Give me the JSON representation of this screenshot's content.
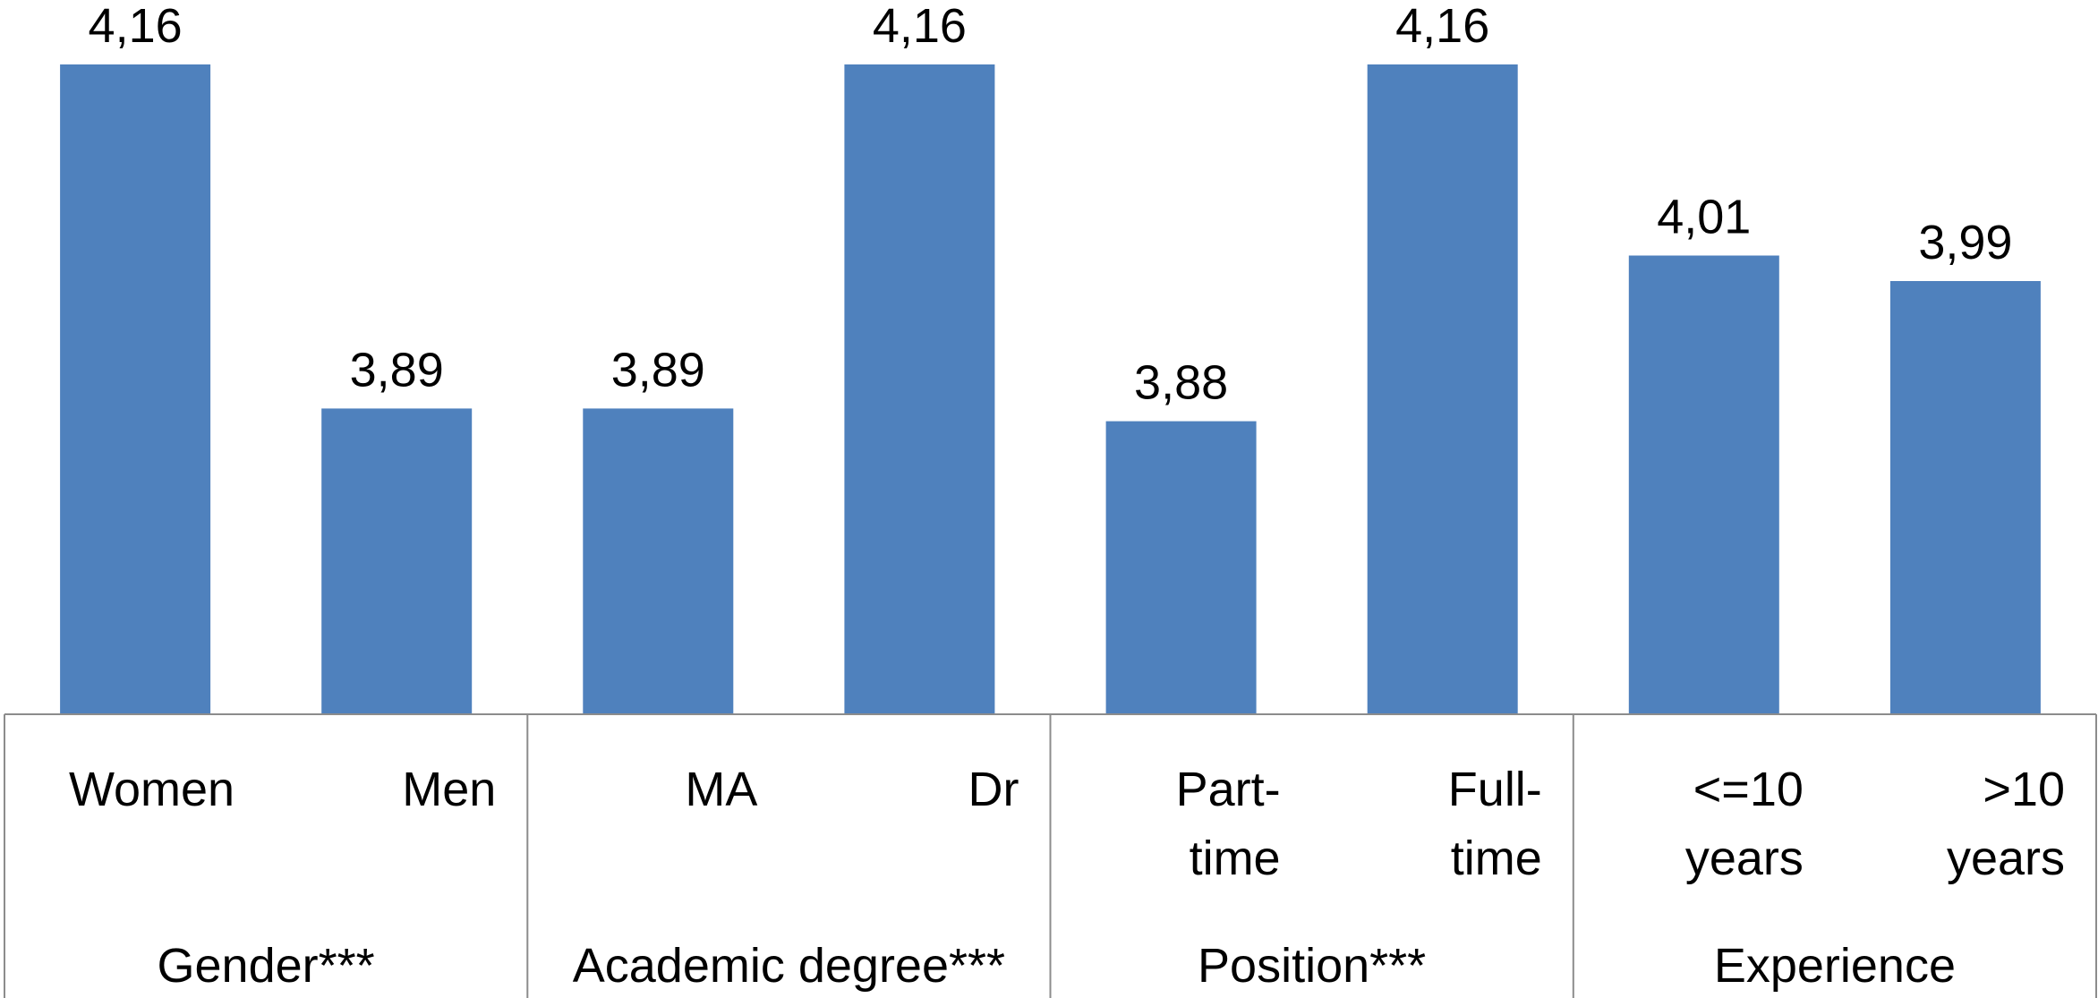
{
  "chart_data": {
    "type": "bar",
    "bar_color": "#4f81bd",
    "categories": [
      "Women",
      "Men",
      "MA",
      "Dr",
      "Part-time",
      "Full-time",
      "<=10 years",
      ">10 years"
    ],
    "category_lines": [
      [
        "Women"
      ],
      [
        "Men"
      ],
      [
        "MA"
      ],
      [
        "Dr"
      ],
      [
        "Part-",
        "time"
      ],
      [
        "Full-",
        "time"
      ],
      [
        "<=10",
        "years"
      ],
      [
        ">10",
        "years"
      ]
    ],
    "values": [
      4.16,
      3.89,
      3.89,
      4.16,
      3.88,
      4.16,
      4.01,
      3.99
    ],
    "value_labels": [
      "4,16",
      "3,89",
      "3,89",
      "4,16",
      "3,88",
      "4,16",
      "4,01",
      "3,99"
    ],
    "groups": [
      {
        "label": "Gender***",
        "categories": [
          "Women",
          "Men"
        ]
      },
      {
        "label": "Academic degree***",
        "categories": [
          "MA",
          "Dr"
        ]
      },
      {
        "label": "Position***",
        "categories": [
          "Part-time",
          "Full-time"
        ]
      },
      {
        "label": "Experience",
        "categories": [
          "<=10 years",
          ">10 years"
        ]
      }
    ],
    "ylim": [
      3.65,
      4.2
    ],
    "grid": false,
    "legend": "none"
  }
}
